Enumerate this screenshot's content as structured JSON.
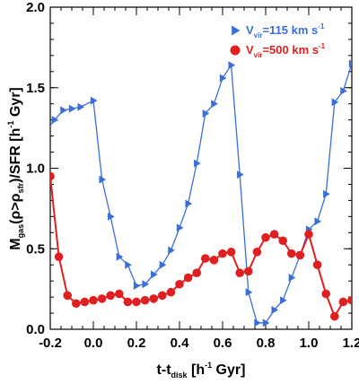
{
  "chart_data": {
    "type": "line",
    "xlim": [
      -0.2,
      1.2
    ],
    "ylim": [
      0.0,
      2.0
    ],
    "x_ticks": [
      "-0.2",
      "0.0",
      "0.2",
      "0.4",
      "0.6",
      "0.8",
      "1.0",
      "1.2"
    ],
    "y_ticks": [
      "0.0",
      "0.5",
      "1.0",
      "1.5",
      "2.0"
    ],
    "x_tick_values": [
      -0.2,
      0.0,
      0.2,
      0.4,
      0.6,
      0.8,
      1.0,
      1.2
    ],
    "y_tick_values": [
      0.0,
      0.5,
      1.0,
      1.5,
      2.0
    ],
    "xlabel": {
      "main": "t-t",
      "sub": "disk",
      "rest": " [h",
      "sup": "-1",
      "end": " Gyr]"
    },
    "ylabel": {
      "main": "M",
      "sub1": "gas",
      "mid": "(ρ>ρ",
      "sub2": "sfr",
      "rest": ")/SFR [h",
      "sup": "-1",
      "end": " Gyr]"
    },
    "grid": false,
    "legend_position": "top-right",
    "series": [
      {
        "name": "V_vir=115 km s^-1",
        "legend": {
          "main": "V",
          "sub": "vir",
          "rest": "=115 km s",
          "sup": "-1"
        },
        "color": "#3a6fd8",
        "marker": "triangle-right",
        "x": [
          -0.22,
          -0.18,
          -0.14,
          -0.1,
          -0.06,
          0.0,
          0.04,
          0.08,
          0.12,
          0.16,
          0.2,
          0.24,
          0.28,
          0.32,
          0.36,
          0.4,
          0.44,
          0.48,
          0.52,
          0.56,
          0.6,
          0.64,
          0.68,
          0.72,
          0.76,
          0.8,
          0.84,
          0.88,
          0.92,
          0.96,
          1.0,
          1.04,
          1.08,
          1.12,
          1.16,
          1.2
        ],
        "y": [
          1.23,
          1.3,
          1.36,
          1.37,
          1.38,
          1.42,
          0.93,
          0.7,
          0.45,
          0.4,
          0.27,
          0.28,
          0.34,
          0.4,
          0.49,
          0.63,
          0.78,
          1.03,
          1.34,
          1.4,
          1.56,
          1.64,
          0.96,
          0.23,
          0.04,
          0.04,
          0.12,
          0.18,
          0.32,
          0.46,
          0.62,
          0.67,
          0.84,
          1.41,
          1.48,
          1.65
        ]
      },
      {
        "name": "V_vir=500 km s^-1",
        "legend": {
          "main": "V",
          "sub": "vir",
          "rest": "=500 km s",
          "sup": "-1"
        },
        "color": "#e02020",
        "marker": "circle",
        "x": [
          -0.2,
          -0.16,
          -0.12,
          -0.08,
          -0.04,
          0.0,
          0.04,
          0.08,
          0.12,
          0.16,
          0.2,
          0.24,
          0.28,
          0.32,
          0.36,
          0.4,
          0.44,
          0.48,
          0.52,
          0.56,
          0.6,
          0.64,
          0.68,
          0.72,
          0.76,
          0.8,
          0.84,
          0.88,
          0.92,
          0.96,
          1.0,
          1.04,
          1.08,
          1.12,
          1.16,
          1.2
        ],
        "y": [
          0.95,
          0.45,
          0.21,
          0.16,
          0.17,
          0.18,
          0.19,
          0.21,
          0.22,
          0.17,
          0.17,
          0.18,
          0.19,
          0.21,
          0.23,
          0.28,
          0.32,
          0.35,
          0.44,
          0.43,
          0.47,
          0.48,
          0.35,
          0.36,
          0.48,
          0.57,
          0.59,
          0.55,
          0.47,
          0.46,
          0.59,
          0.4,
          0.22,
          0.08,
          0.17,
          0.18
        ]
      }
    ]
  }
}
